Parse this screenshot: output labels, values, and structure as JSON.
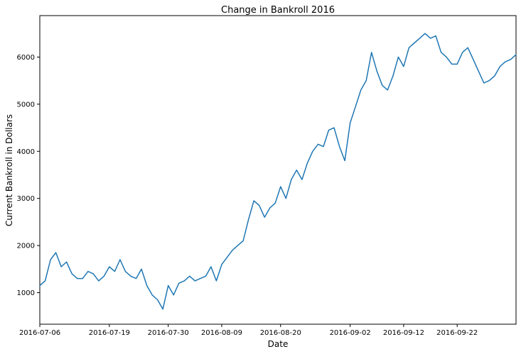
{
  "chart_data": {
    "type": "line",
    "title": "Change in Bankroll 2016",
    "xlabel": "Date",
    "ylabel": "Current Bankroll in Dollars",
    "x_ticks": [
      "2016-07-06",
      "2016-07-19",
      "2016-07-30",
      "2016-08-09",
      "2016-08-20",
      "2016-09-02",
      "2016-09-12",
      "2016-09-22"
    ],
    "y_ticks": [
      1000,
      2000,
      3000,
      4000,
      5000,
      6000
    ],
    "xlim": [
      "2016-07-06",
      "2016-10-03"
    ],
    "ylim": [
      330,
      6880
    ],
    "grid": false,
    "line_color": "#1f77b4",
    "series": [
      {
        "x": [
          "2016-07-06",
          "2016-07-07",
          "2016-07-08",
          "2016-07-09",
          "2016-07-10",
          "2016-07-11",
          "2016-07-12",
          "2016-07-13",
          "2016-07-14",
          "2016-07-15",
          "2016-07-16",
          "2016-07-17",
          "2016-07-18",
          "2016-07-19",
          "2016-07-20",
          "2016-07-21",
          "2016-07-22",
          "2016-07-23",
          "2016-07-24",
          "2016-07-25",
          "2016-07-26",
          "2016-07-27",
          "2016-07-28",
          "2016-07-29",
          "2016-07-30",
          "2016-07-31",
          "2016-08-01",
          "2016-08-02",
          "2016-08-03",
          "2016-08-04",
          "2016-08-05",
          "2016-08-06",
          "2016-08-07",
          "2016-08-08",
          "2016-08-09",
          "2016-08-10",
          "2016-08-11",
          "2016-08-12",
          "2016-08-13",
          "2016-08-14",
          "2016-08-15",
          "2016-08-16",
          "2016-08-17",
          "2016-08-18",
          "2016-08-19",
          "2016-08-20",
          "2016-08-21",
          "2016-08-22",
          "2016-08-23",
          "2016-08-24",
          "2016-08-25",
          "2016-08-26",
          "2016-08-27",
          "2016-08-28",
          "2016-08-29",
          "2016-08-30",
          "2016-08-31",
          "2016-09-01",
          "2016-09-02",
          "2016-09-03",
          "2016-09-04",
          "2016-09-05",
          "2016-09-06",
          "2016-09-07",
          "2016-09-08",
          "2016-09-09",
          "2016-09-10",
          "2016-09-11",
          "2016-09-12",
          "2016-09-13",
          "2016-09-14",
          "2016-09-15",
          "2016-09-16",
          "2016-09-17",
          "2016-09-18",
          "2016-09-19",
          "2016-09-20",
          "2016-09-21",
          "2016-09-22",
          "2016-09-23",
          "2016-09-24",
          "2016-09-25",
          "2016-09-26",
          "2016-09-27",
          "2016-09-28",
          "2016-09-29",
          "2016-09-30",
          "2016-10-01",
          "2016-10-02",
          "2016-10-03"
        ],
        "y": [
          1150,
          1250,
          1700,
          1850,
          1550,
          1650,
          1400,
          1300,
          1300,
          1450,
          1400,
          1250,
          1350,
          1550,
          1450,
          1700,
          1450,
          1350,
          1300,
          1500,
          1150,
          950,
          850,
          650,
          1150,
          950,
          1200,
          1250,
          1350,
          1250,
          1300,
          1350,
          1550,
          1250,
          1600,
          1750,
          1900,
          2000,
          2100,
          2550,
          2950,
          2850,
          2600,
          2800,
          2900,
          3250,
          3000,
          3400,
          3600,
          3400,
          3750,
          4000,
          4150,
          4100,
          4450,
          4500,
          4100,
          3800,
          4600,
          4950,
          5300,
          5500,
          6100,
          5700,
          5400,
          5300,
          5600,
          6000,
          5800,
          6200,
          6300,
          6400,
          6500,
          6400,
          6450,
          6100,
          6000,
          5850,
          5850,
          6100,
          6200,
          5950,
          5700,
          5450,
          5500,
          5600,
          5800,
          5900,
          5950,
          6050
        ]
      }
    ]
  }
}
